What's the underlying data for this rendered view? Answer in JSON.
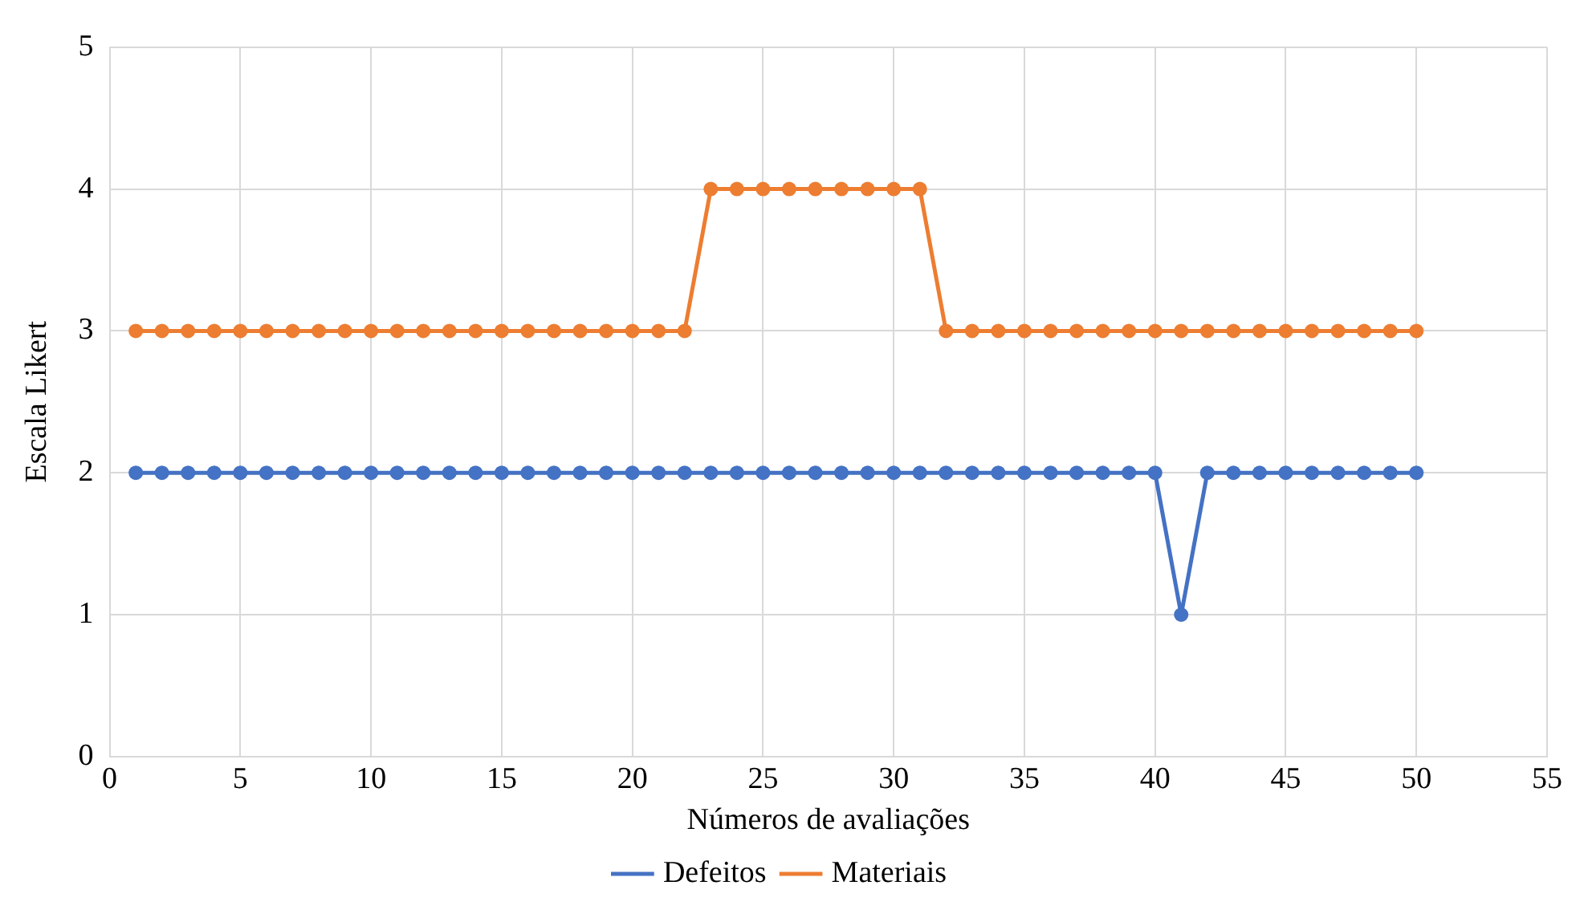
{
  "chart_data": {
    "type": "line",
    "xlabel": "Números de avaliações",
    "ylabel": "Escala Likert",
    "x": [
      1,
      2,
      3,
      4,
      5,
      6,
      7,
      8,
      9,
      10,
      11,
      12,
      13,
      14,
      15,
      16,
      17,
      18,
      19,
      20,
      21,
      22,
      23,
      24,
      25,
      26,
      27,
      28,
      29,
      30,
      31,
      32,
      33,
      34,
      35,
      36,
      37,
      38,
      39,
      40,
      41,
      42,
      43,
      44,
      45,
      46,
      47,
      48,
      49,
      50
    ],
    "series": [
      {
        "name": "Defeitos",
        "color": "#4472c4",
        "values": [
          2,
          2,
          2,
          2,
          2,
          2,
          2,
          2,
          2,
          2,
          2,
          2,
          2,
          2,
          2,
          2,
          2,
          2,
          2,
          2,
          2,
          2,
          2,
          2,
          2,
          2,
          2,
          2,
          2,
          2,
          2,
          2,
          2,
          2,
          2,
          2,
          2,
          2,
          2,
          2,
          1,
          2,
          2,
          2,
          2,
          2,
          2,
          2,
          2,
          2
        ]
      },
      {
        "name": "Materiais",
        "color": "#ed7d31",
        "values": [
          3,
          3,
          3,
          3,
          3,
          3,
          3,
          3,
          3,
          3,
          3,
          3,
          3,
          3,
          3,
          3,
          3,
          3,
          3,
          3,
          3,
          3,
          4,
          4,
          4,
          4,
          4,
          4,
          4,
          4,
          4,
          3,
          3,
          3,
          3,
          3,
          3,
          3,
          3,
          3,
          3,
          3,
          3,
          3,
          3,
          3,
          3,
          3,
          3,
          3
        ]
      }
    ],
    "xlim": [
      0,
      55
    ],
    "xticks": [
      0,
      5,
      10,
      15,
      20,
      25,
      30,
      35,
      40,
      45,
      50,
      55
    ],
    "ylim": [
      0,
      5
    ],
    "yticks": [
      0,
      1,
      2,
      3,
      4,
      5
    ],
    "grid": true,
    "legend": "bottom",
    "marker": "circle",
    "line_style": "solid"
  }
}
